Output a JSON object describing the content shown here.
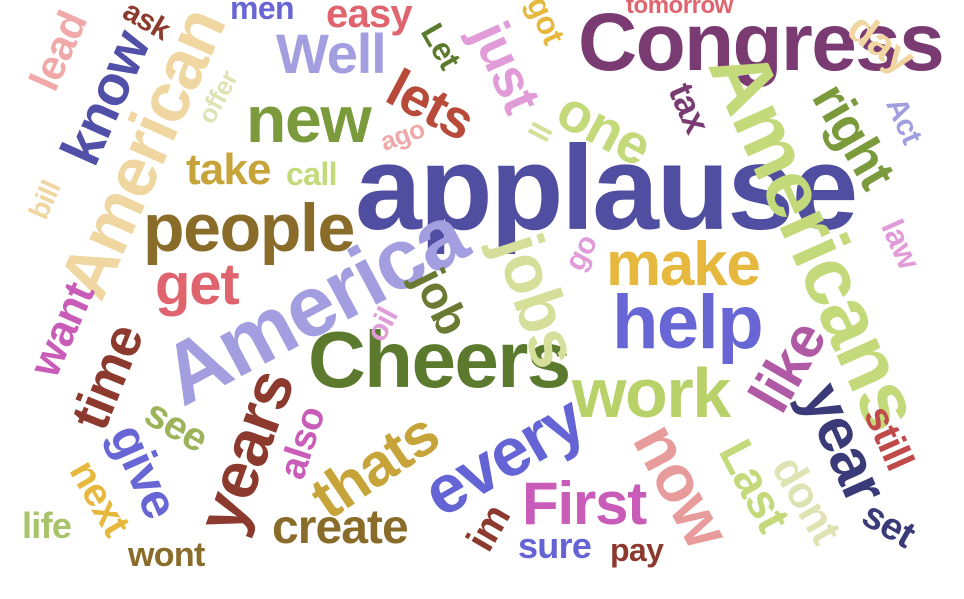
{
  "word_cloud": {
    "words": [
      {
        "text": "applause",
        "color": "#4f4ea0"
      },
      {
        "text": "Congress",
        "color": "#7a3b73"
      },
      {
        "text": "Americans",
        "color": "#c3d97a"
      },
      {
        "text": "America",
        "color": "#a39ee0"
      },
      {
        "text": "American",
        "color": "#f0d6a0"
      },
      {
        "text": "Cheers",
        "color": "#5b7a2e"
      },
      {
        "text": "people",
        "color": "#8a6c2a"
      },
      {
        "text": "help",
        "color": "#6866d4"
      },
      {
        "text": "work",
        "color": "#b9d169"
      },
      {
        "text": "new",
        "color": "#7b9a3c"
      },
      {
        "text": "make",
        "color": "#e7b83e"
      },
      {
        "text": "jobs",
        "color": "#d5df9a"
      },
      {
        "text": "every",
        "color": "#6464d4"
      },
      {
        "text": "First",
        "color": "#c95cb9"
      },
      {
        "text": "now",
        "color": "#e89b9b"
      },
      {
        "text": "years",
        "color": "#8c3a2e"
      },
      {
        "text": "year",
        "color": "#3b3a78"
      },
      {
        "text": "thats",
        "color": "#c7a43a"
      },
      {
        "text": "like",
        "color": "#b05aa6"
      },
      {
        "text": "get",
        "color": "#e0646e"
      },
      {
        "text": "one",
        "color": "#c3d97a"
      },
      {
        "text": "just",
        "color": "#e19bd9"
      },
      {
        "text": "lets",
        "color": "#b84a3a"
      },
      {
        "text": "know",
        "color": "#5150a8"
      },
      {
        "text": "Well",
        "color": "#a39ee0"
      },
      {
        "text": "right",
        "color": "#7b9a3c"
      },
      {
        "text": "time",
        "color": "#8c3a2e"
      },
      {
        "text": "create",
        "color": "#8a6c2a"
      },
      {
        "text": "give",
        "color": "#6866d4"
      },
      {
        "text": "job",
        "color": "#6b7a32"
      },
      {
        "text": "take",
        "color": "#c7a43a"
      },
      {
        "text": "want",
        "color": "#c95cb9"
      },
      {
        "text": "Last",
        "color": "#c3d97a"
      },
      {
        "text": "dont",
        "color": "#dfe3b4"
      },
      {
        "text": "still",
        "color": "#c04a4a"
      },
      {
        "text": "set",
        "color": "#3b3a78"
      },
      {
        "text": "see",
        "color": "#9cb35a"
      },
      {
        "text": "next",
        "color": "#e7b83e"
      },
      {
        "text": "life",
        "color": "#a7c46a"
      },
      {
        "text": "wont",
        "color": "#8a6c2a"
      },
      {
        "text": "sure",
        "color": "#6464d4"
      },
      {
        "text": "pay",
        "color": "#8c3a2e"
      },
      {
        "text": "im",
        "color": "#8c3a2e"
      },
      {
        "text": "also",
        "color": "#c95cb9"
      },
      {
        "text": "oil",
        "color": "#e19bd9"
      },
      {
        "text": "go",
        "color": "#e19bd9"
      },
      {
        "text": "call",
        "color": "#c3d97a"
      },
      {
        "text": "ago",
        "color": "#f0a8a8"
      },
      {
        "text": "ll",
        "color": "#d5df9a"
      },
      {
        "text": "tax",
        "color": "#7a3b73"
      },
      {
        "text": "got",
        "color": "#e7b83e"
      },
      {
        "text": "Let",
        "color": "#5b7a2e"
      },
      {
        "text": "easy",
        "color": "#e0646e"
      },
      {
        "text": "men",
        "color": "#6866d4"
      },
      {
        "text": "ask",
        "color": "#8c3a2e"
      },
      {
        "text": "lead",
        "color": "#f0a8a8"
      },
      {
        "text": "offer",
        "color": "#dfe3b4"
      },
      {
        "text": "bill",
        "color": "#f0d6a0"
      },
      {
        "text": "day",
        "color": "#f0d6a0"
      },
      {
        "text": "Act",
        "color": "#a39ee0"
      },
      {
        "text": "law",
        "color": "#e19bd9"
      },
      {
        "text": "tomorrow",
        "color": "#e0646e"
      }
    ]
  }
}
